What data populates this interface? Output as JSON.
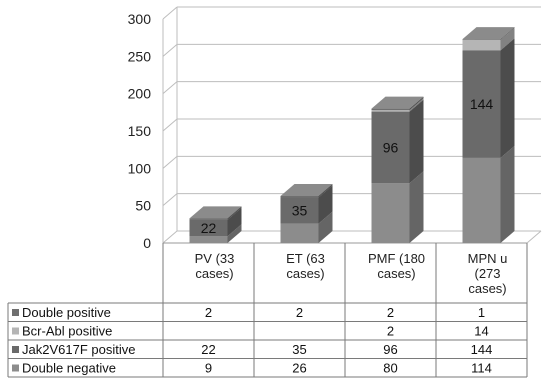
{
  "chart_data": {
    "type": "bar",
    "stacked": true,
    "three_d": true,
    "ylim": [
      0,
      300
    ],
    "yticks": [
      0,
      50,
      100,
      150,
      200,
      250,
      300
    ],
    "grid": true,
    "categories": [
      "PV (33 cases)",
      "ET (63 cases)",
      "PMF (180 cases)",
      "MPN u (273 cases)"
    ],
    "category_lines": [
      [
        "PV (33",
        "cases)"
      ],
      [
        "ET (63",
        "cases)"
      ],
      [
        "PMF (180",
        "cases)"
      ],
      [
        "MPN u",
        "(273",
        "cases)"
      ]
    ],
    "series": [
      {
        "name": "Double positive",
        "values": [
          2,
          2,
          2,
          1
        ],
        "color": "#6f6f6f"
      },
      {
        "name": "Bcr-Abl  positive",
        "values": [
          null,
          null,
          2,
          14
        ],
        "color": "#b5b5b5"
      },
      {
        "name": "Jak2V617F positive",
        "values": [
          22,
          35,
          96,
          144
        ],
        "color": "#6a6a6a"
      },
      {
        "name": "Double negative",
        "values": [
          9,
          26,
          80,
          114
        ],
        "color": "#8c8c8c"
      }
    ],
    "bar_labels": [
      {
        "category": 0,
        "series": "Jak2V617F positive",
        "text": "22"
      },
      {
        "category": 1,
        "series": "Jak2V617F positive",
        "text": "35"
      },
      {
        "category": 2,
        "series": "Jak2V617F positive",
        "text": "96"
      },
      {
        "category": 3,
        "series": "Jak2V617F positive",
        "text": "144"
      }
    ],
    "data_table": {
      "rows": [
        {
          "label": "Double positive",
          "cells": [
            "2",
            "2",
            "2",
            "1"
          ]
        },
        {
          "label": "Bcr-Abl  positive",
          "cells": [
            "",
            "",
            "2",
            "14"
          ]
        },
        {
          "label": "Jak2V617F positive",
          "cells": [
            "22",
            "35",
            "96",
            "144"
          ]
        },
        {
          "label": "Double negative",
          "cells": [
            "9",
            "26",
            "80",
            "114"
          ]
        }
      ]
    }
  }
}
